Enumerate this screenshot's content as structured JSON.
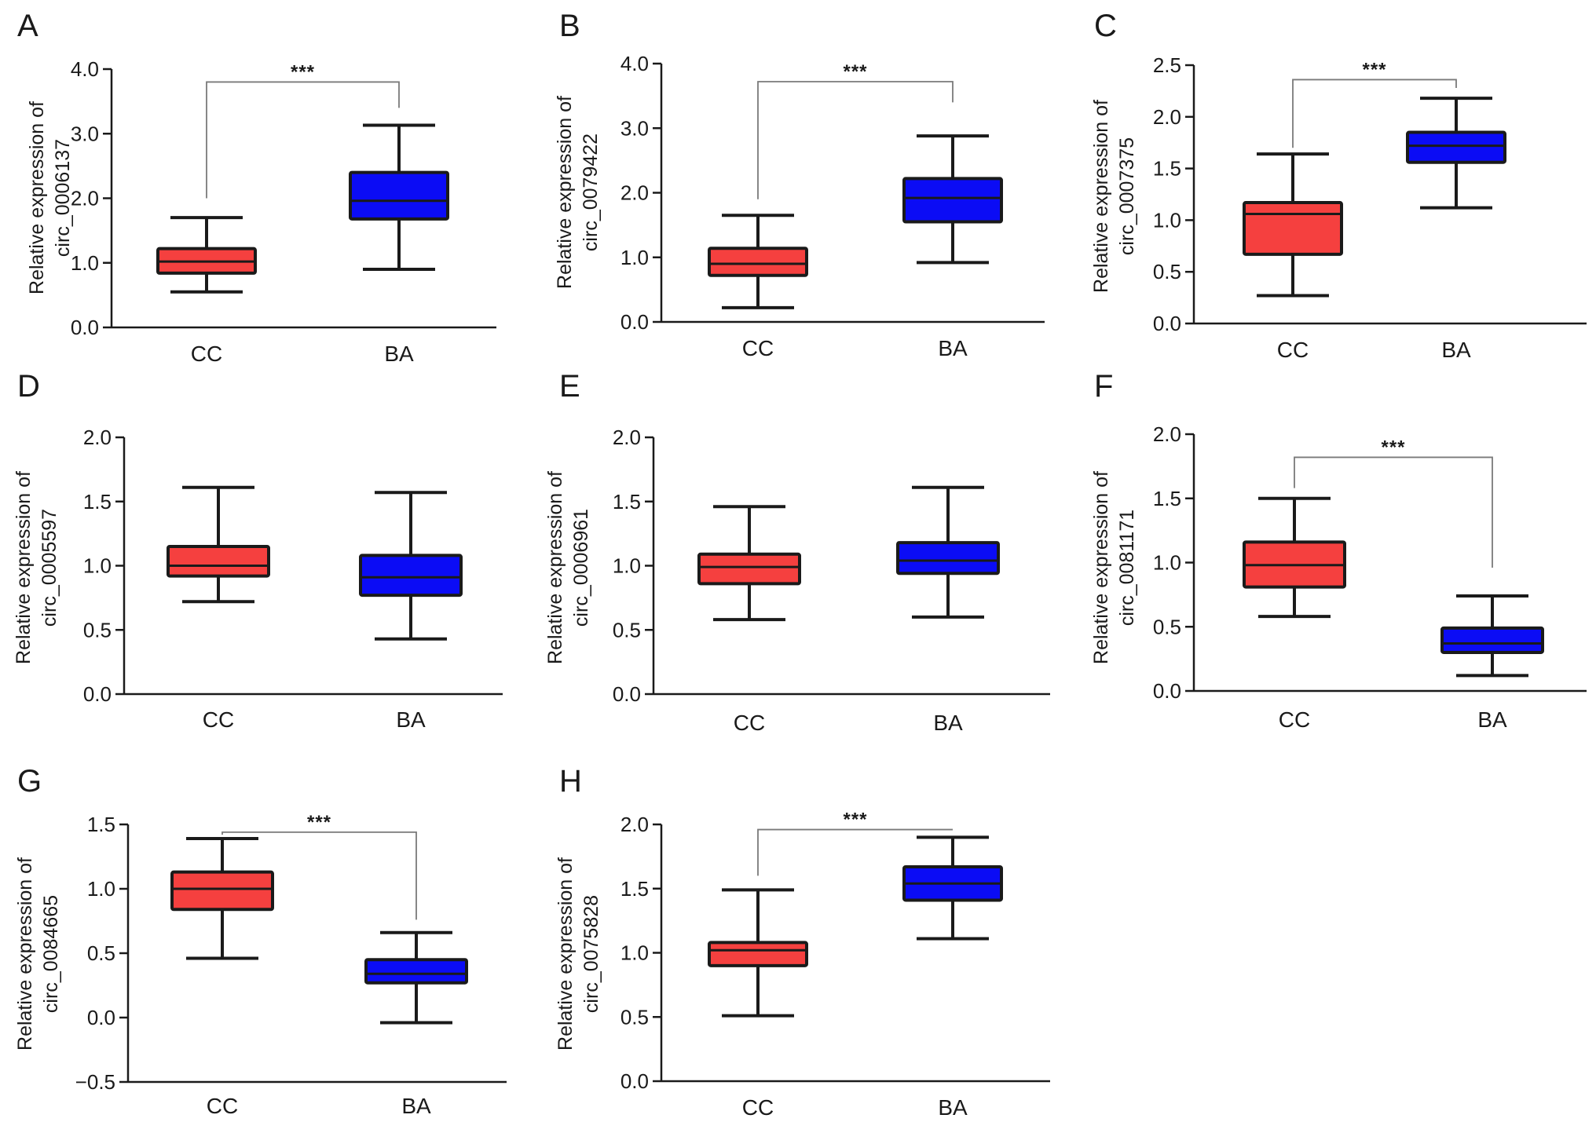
{
  "colors": {
    "CC": "#f5403f",
    "BA": "#0b0cf5",
    "axis": "#1a1a1a",
    "bracket": "#7a7a7a"
  },
  "chart_data": [
    {
      "panel": "A",
      "type": "box",
      "categories": [
        "CC",
        "BA"
      ],
      "ylabel": "Relative expression of circ_0006137",
      "ylabel_lines": [
        "Relative expression of",
        "circ_0006137"
      ],
      "ylim": [
        0,
        4
      ],
      "yticks": [
        "0.0",
        "1.0",
        "2.0",
        "3.0",
        "4.0"
      ],
      "boxes": [
        {
          "group": "CC",
          "min": 0.55,
          "q1": 0.84,
          "median": 1.02,
          "q3": 1.22,
          "max": 1.7
        },
        {
          "group": "BA",
          "min": 0.9,
          "q1": 1.68,
          "median": 1.96,
          "q3": 2.4,
          "max": 3.13
        }
      ],
      "significance": "***",
      "bracket": {
        "y_top": 3.8,
        "left_end": 2.0,
        "right_end": 3.4
      }
    },
    {
      "panel": "B",
      "type": "box",
      "categories": [
        "CC",
        "BA"
      ],
      "ylabel": "Relative expression of circ_0079422",
      "ylabel_lines": [
        "Relative expression of",
        "circ_0079422"
      ],
      "ylim": [
        0,
        4
      ],
      "yticks": [
        "0.0",
        "1.0",
        "2.0",
        "3.0",
        "4.0"
      ],
      "boxes": [
        {
          "group": "CC",
          "min": 0.22,
          "q1": 0.72,
          "median": 0.9,
          "q3": 1.14,
          "max": 1.65
        },
        {
          "group": "BA",
          "min": 0.92,
          "q1": 1.55,
          "median": 1.92,
          "q3": 2.22,
          "max": 2.88
        }
      ],
      "significance": "***",
      "bracket": {
        "y_top": 3.72,
        "left_end": 1.9,
        "right_end": 3.4
      }
    },
    {
      "panel": "C",
      "type": "box",
      "categories": [
        "CC",
        "BA"
      ],
      "ylabel": "Relative expression of circ_0007375",
      "ylabel_lines": [
        "Relative expression of",
        "circ_0007375"
      ],
      "ylim": [
        0,
        2.5
      ],
      "yticks": [
        "0.0",
        "0.5",
        "1.0",
        "1.5",
        "2.0",
        "2.5"
      ],
      "boxes": [
        {
          "group": "CC",
          "min": 0.27,
          "q1": 0.67,
          "median": 1.06,
          "q3": 1.17,
          "max": 1.64
        },
        {
          "group": "BA",
          "min": 1.12,
          "q1": 1.56,
          "median": 1.72,
          "q3": 1.85,
          "max": 2.18
        }
      ],
      "significance": "***",
      "bracket": {
        "y_top": 2.36,
        "left_end": 1.7,
        "right_end": 2.28
      }
    },
    {
      "panel": "D",
      "type": "box",
      "categories": [
        "CC",
        "BA"
      ],
      "ylabel": "Relative expression of circ_0005597",
      "ylabel_lines": [
        "Relative expression of",
        "circ_0005597"
      ],
      "ylim": [
        0,
        2
      ],
      "yticks": [
        "0.0",
        "0.5",
        "1.0",
        "1.5",
        "2.0"
      ],
      "boxes": [
        {
          "group": "CC",
          "min": 0.72,
          "q1": 0.92,
          "median": 1.0,
          "q3": 1.15,
          "max": 1.61
        },
        {
          "group": "BA",
          "min": 0.43,
          "q1": 0.77,
          "median": 0.91,
          "q3": 1.08,
          "max": 1.57
        }
      ],
      "significance": ""
    },
    {
      "panel": "E",
      "type": "box",
      "categories": [
        "CC",
        "BA"
      ],
      "ylabel": "Relative expression of circ_0006961",
      "ylabel_lines": [
        "Relative expression of",
        "circ_0006961"
      ],
      "ylim": [
        0,
        2
      ],
      "yticks": [
        "0.0",
        "0.5",
        "1.0",
        "1.5",
        "2.0"
      ],
      "boxes": [
        {
          "group": "CC",
          "min": 0.58,
          "q1": 0.86,
          "median": 0.99,
          "q3": 1.09,
          "max": 1.46
        },
        {
          "group": "BA",
          "min": 0.6,
          "q1": 0.94,
          "median": 1.04,
          "q3": 1.18,
          "max": 1.61
        }
      ],
      "significance": ""
    },
    {
      "panel": "F",
      "type": "box",
      "categories": [
        "CC",
        "BA"
      ],
      "ylabel": "Relative expression of circ_0081171",
      "ylabel_lines": [
        "Relative expression of",
        "circ_0081171"
      ],
      "ylim": [
        0,
        2
      ],
      "yticks": [
        "0.0",
        "0.5",
        "1.0",
        "1.5",
        "2.0"
      ],
      "boxes": [
        {
          "group": "CC",
          "min": 0.58,
          "q1": 0.81,
          "median": 0.98,
          "q3": 1.16,
          "max": 1.5
        },
        {
          "group": "BA",
          "min": 0.12,
          "q1": 0.3,
          "median": 0.37,
          "q3": 0.49,
          "max": 0.74
        }
      ],
      "significance": "***",
      "bracket": {
        "y_top": 1.82,
        "left_end": 1.58,
        "right_end": 0.96
      }
    },
    {
      "panel": "G",
      "type": "box",
      "categories": [
        "CC",
        "BA"
      ],
      "ylabel": "Relative expression of circ_0084665",
      "ylabel_lines": [
        "Relative expression of",
        "circ_0084665"
      ],
      "ylim": [
        -0.5,
        1.5
      ],
      "yticks": [
        "−0.5",
        "0.0",
        "0.5",
        "1.0",
        "1.5"
      ],
      "boxes": [
        {
          "group": "CC",
          "min": 0.46,
          "q1": 0.84,
          "median": 1.0,
          "q3": 1.13,
          "max": 1.39
        },
        {
          "group": "BA",
          "min": -0.04,
          "q1": 0.27,
          "median": 0.34,
          "q3": 0.45,
          "max": 0.66
        }
      ],
      "significance": "***",
      "bracket": {
        "y_top": 1.44,
        "left_end": 1.42,
        "right_end": 0.76
      }
    },
    {
      "panel": "H",
      "type": "box",
      "categories": [
        "CC",
        "BA"
      ],
      "ylabel": "Relative expression of circ_0075828",
      "ylabel_lines": [
        "Relative expression of",
        "circ_0075828"
      ],
      "ylim": [
        0,
        2
      ],
      "yticks": [
        "0.0",
        "0.5",
        "1.0",
        "1.5",
        "2.0"
      ],
      "boxes": [
        {
          "group": "CC",
          "min": 0.51,
          "q1": 0.9,
          "median": 1.02,
          "q3": 1.08,
          "max": 1.49
        },
        {
          "group": "BA",
          "min": 1.11,
          "q1": 1.41,
          "median": 1.54,
          "q3": 1.67,
          "max": 1.9
        }
      ],
      "significance": "***",
      "bracket": {
        "y_top": 1.96,
        "left_end": 1.6,
        "right_end": 1.96
      }
    }
  ]
}
